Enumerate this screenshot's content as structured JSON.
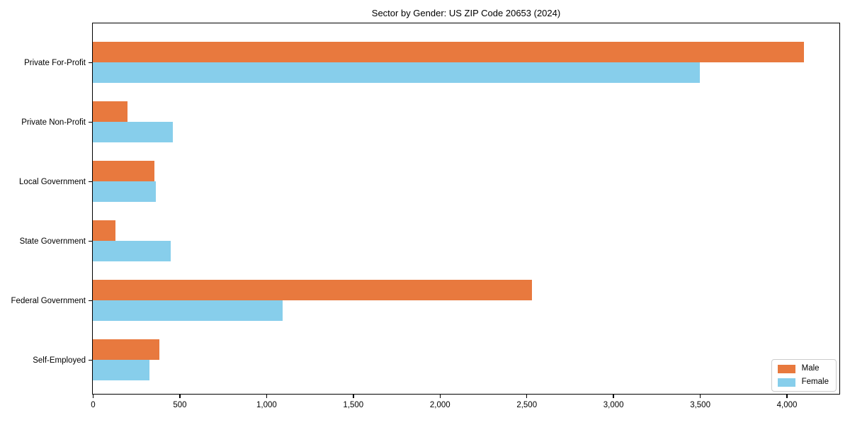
{
  "title": "Sector by Gender: US ZIP Code 20653 (2024)",
  "chart_data": {
    "type": "bar",
    "orientation": "horizontal",
    "title": "Sector by Gender: US ZIP Code 20653 (2024)",
    "xlabel": "",
    "ylabel": "",
    "categories": [
      "Private For-Profit",
      "Private Non-Profit",
      "Local Government",
      "State Government",
      "Federal Government",
      "Self-Employed"
    ],
    "series": [
      {
        "name": "Male",
        "color": "#e8793e",
        "values": [
          4100,
          200,
          355,
          130,
          2530,
          385
        ]
      },
      {
        "name": "Female",
        "color": "#87ceeb",
        "values": [
          3500,
          460,
          365,
          450,
          1095,
          325
        ]
      }
    ],
    "xlim": [
      0,
      4300
    ],
    "xticks": [
      0,
      500,
      1000,
      1500,
      2000,
      2500,
      3000,
      3500,
      4000
    ],
    "xtick_labels": [
      "0",
      "500",
      "1,000",
      "1,500",
      "2,000",
      "2,500",
      "3,000",
      "3,500",
      "4,000"
    ],
    "grid": false,
    "legend": {
      "position": "lower right",
      "entries": [
        "Male",
        "Female"
      ]
    }
  }
}
